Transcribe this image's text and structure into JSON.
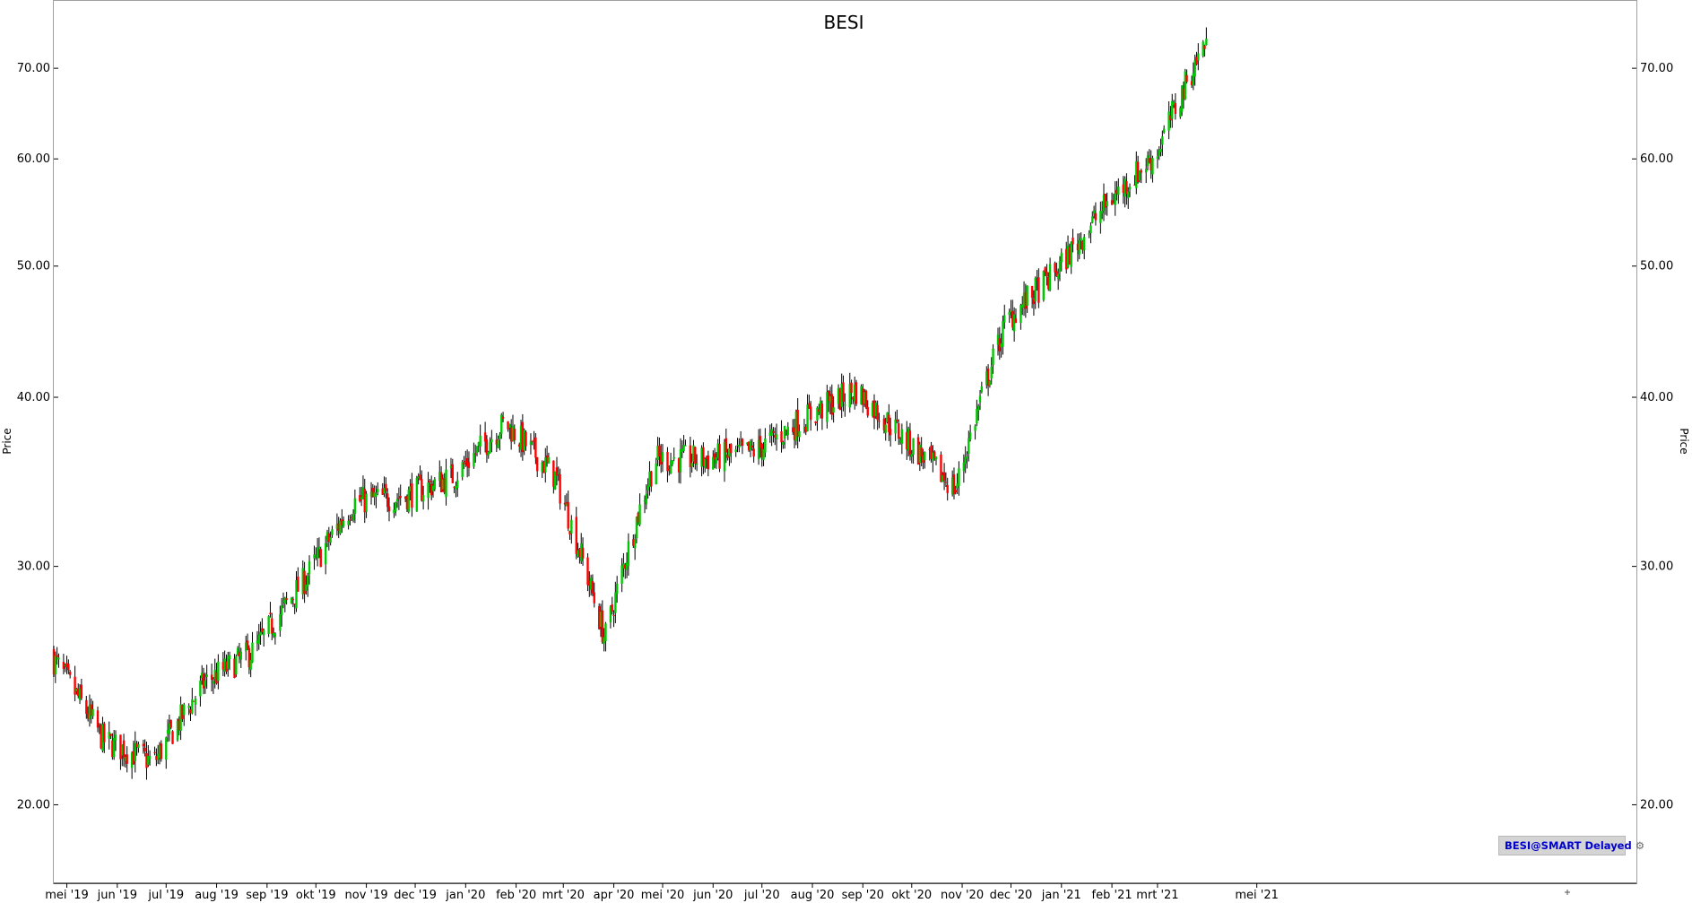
{
  "chart_data": {
    "type": "candlestick",
    "title": "BESI",
    "ylabel_left": "Price",
    "ylabel_right": "Price",
    "y_scale": "log",
    "ylim": [
      17.5,
      78.5
    ],
    "y_ticks": [
      "20.00",
      "30.00",
      "40.00",
      "50.00",
      "60.00",
      "70.00"
    ],
    "x_tick_labels": [
      "mei '19",
      "jun '19",
      "jul '19",
      "aug '19",
      "sep '19",
      "okt '19",
      "nov '19",
      "dec '19",
      "jan '20",
      "feb '20",
      "mrt '20",
      "apr '20",
      "mei '20",
      "jun '20",
      "jul '20",
      "aug '20",
      "sep '20",
      "okt '20",
      "nov '20",
      "dec '20",
      "jan '21",
      "feb '21",
      "mrt '21",
      "mei '21"
    ],
    "up_color": "#00c800",
    "down_color": "#ff0000",
    "wick_color": "#000000",
    "grid": false,
    "monthly_closes": [
      {
        "month": "apr '19",
        "close": 25.6
      },
      {
        "month": "mei '19",
        "close": 22.3
      },
      {
        "month": "jun '19",
        "close": 21.5
      },
      {
        "month": "jul '19",
        "close": 24.6
      },
      {
        "month": "aug '19",
        "close": 26.0
      },
      {
        "month": "sep '19",
        "close": 29.3
      },
      {
        "month": "okt '19",
        "close": 33.5
      },
      {
        "month": "nov '19",
        "close": 33.8
      },
      {
        "month": "dec '19",
        "close": 35.0
      },
      {
        "month": "jan '20",
        "close": 38.3
      },
      {
        "month": "feb '20",
        "close": 35.0
      },
      {
        "month": "mrt '20",
        "close": 26.5
      },
      {
        "month": "apr '20",
        "close": 36.0
      },
      {
        "month": "mei '20",
        "close": 36.0
      },
      {
        "month": "jun '20",
        "close": 36.5
      },
      {
        "month": "jul '20",
        "close": 38.6
      },
      {
        "month": "aug '20",
        "close": 40.5
      },
      {
        "month": "sep '20",
        "close": 37.2
      },
      {
        "month": "okt '20",
        "close": 34.2
      },
      {
        "month": "nov '20",
        "close": 45.5
      },
      {
        "month": "dec '20",
        "close": 49.5
      },
      {
        "month": "jan '21",
        "close": 55.5
      },
      {
        "month": "feb '21",
        "close": 60.5
      },
      {
        "month": "mrt '21",
        "close": 73.5
      }
    ],
    "badge_text": "BESI@SMART Delayed"
  }
}
